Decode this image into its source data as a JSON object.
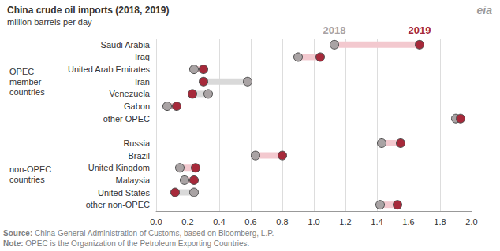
{
  "chart_data": {
    "type": "dumbbell",
    "title": "China crude oil imports (2018, 2019)",
    "subtitle": "million barrels per day",
    "logo": "eia",
    "orientation": "horizontal",
    "categories": [
      "Saudi Arabia",
      "Iraq",
      "United Arab Emirates",
      "Iran",
      "Venezuela",
      "Gabon",
      "other OPEC",
      null,
      "Russia",
      "Brazil",
      "United Kingdom",
      "Malaysia",
      "United States",
      "other non-OPEC"
    ],
    "series": [
      {
        "name": "2018",
        "color": "#a9a3a4",
        "values": [
          1.13,
          0.9,
          0.24,
          0.58,
          0.33,
          0.07,
          1.9,
          null,
          1.43,
          0.63,
          0.15,
          0.18,
          0.24,
          1.42
        ]
      },
      {
        "name": "2019",
        "color": "#a6293a",
        "values": [
          1.67,
          1.04,
          0.3,
          0.3,
          0.23,
          0.13,
          1.93,
          null,
          1.55,
          0.8,
          0.25,
          0.24,
          0.12,
          1.53
        ]
      }
    ],
    "groups": [
      {
        "label": "OPEC member countries",
        "first": "Saudi Arabia",
        "last": "other OPEC"
      },
      {
        "label": "non-OPEC countries",
        "first": "Russia",
        "last": "other non-OPEC"
      }
    ],
    "xlim": [
      0,
      2
    ],
    "xticks": [
      {
        "value": 0,
        "label": "0.0"
      },
      0.2,
      0.4,
      0.6,
      0.8,
      {
        "value": 1,
        "label": "1.0"
      },
      1.2,
      1.4,
      1.6,
      1.8,
      {
        "value": 2,
        "label": "2.0"
      }
    ],
    "grid": true,
    "annotations": [
      {
        "label": "Source:",
        "text": "China General Administration of Customs, based on Bloomberg, L.P."
      },
      {
        "label": "Note:",
        "text": "OPEC is the Organization of the Petroleum Exporting Countries."
      }
    ]
  }
}
